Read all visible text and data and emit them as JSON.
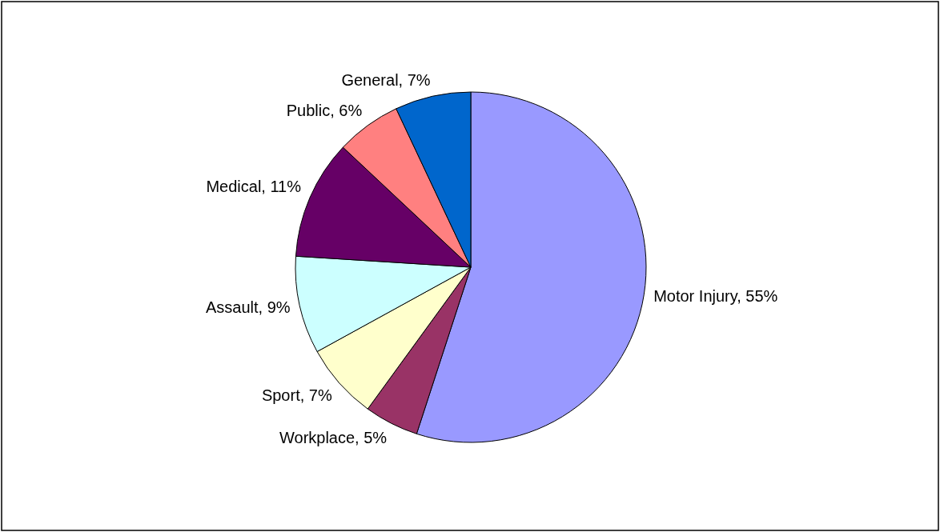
{
  "chart_data": {
    "type": "pie",
    "categories": [
      "Motor Injury",
      "Workplace",
      "Sport",
      "Assault",
      "Medical",
      "Public",
      "General"
    ],
    "values": [
      55,
      5,
      7,
      9,
      11,
      6,
      7
    ],
    "colors": [
      "#9999ff",
      "#993366",
      "#ffffcc",
      "#ccffff",
      "#660066",
      "#ff8080",
      "#0066cc"
    ],
    "value_labels": [
      "55%",
      "5%",
      "7%",
      "9%",
      "11%",
      "6%",
      "7%"
    ],
    "legend": false
  }
}
